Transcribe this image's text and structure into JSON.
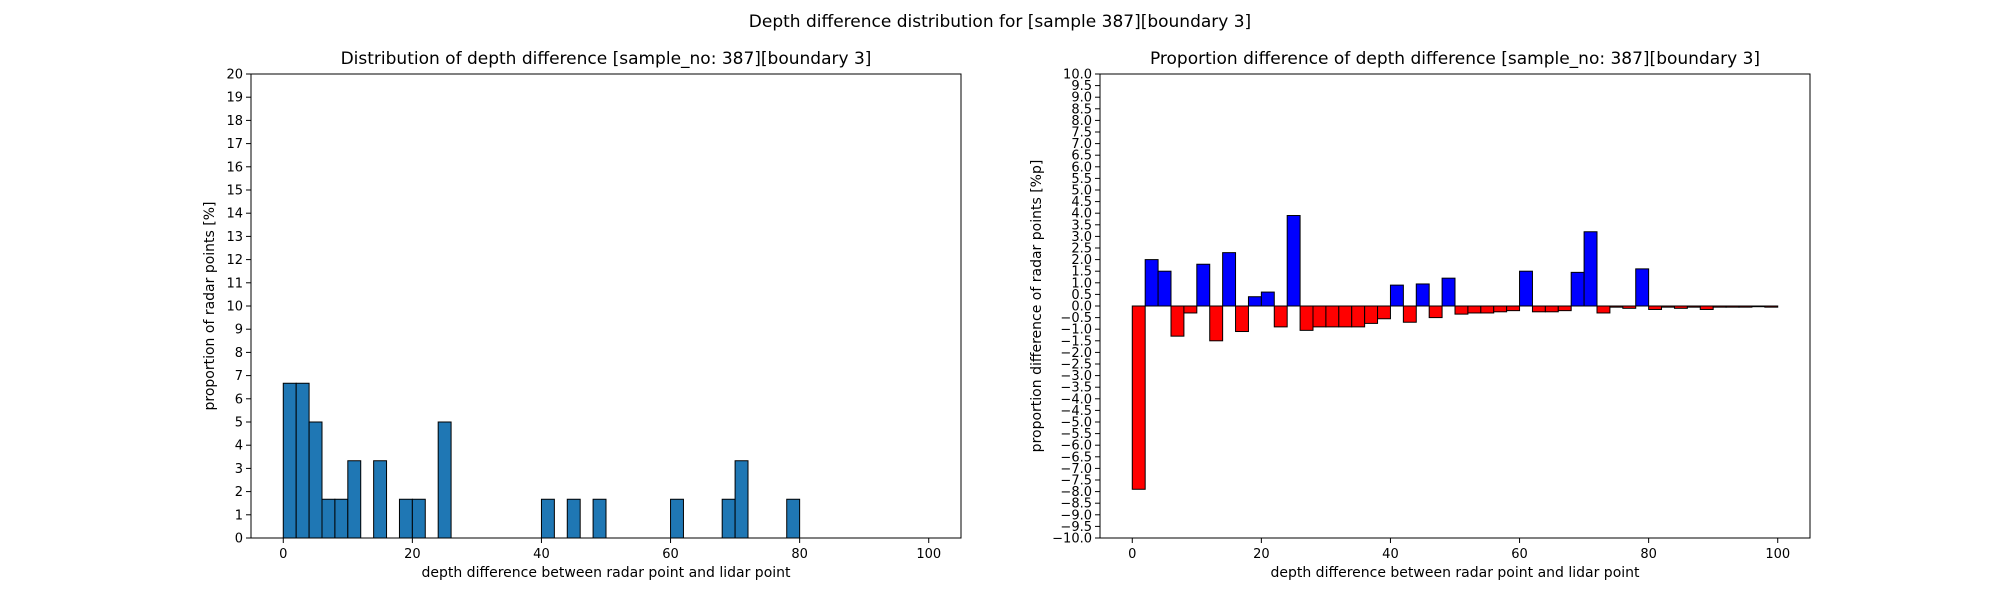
{
  "figure_title": "Depth difference distribution for [sample 387][boundary 3]",
  "chart_data": [
    {
      "type": "bar",
      "title": "Distribution of depth difference [sample_no: 387][boundary 3]",
      "xlabel": "depth difference between radar point and lidar point",
      "ylabel": "proportion of radar points [%]",
      "xlim": [
        -5,
        105
      ],
      "ylim": [
        0,
        20
      ],
      "xticks": [
        0,
        20,
        40,
        60,
        80,
        100
      ],
      "yticks": [
        0,
        1,
        2,
        3,
        4,
        5,
        6,
        7,
        8,
        9,
        10,
        11,
        12,
        13,
        14,
        15,
        16,
        17,
        18,
        19,
        20
      ],
      "bin_width": 2,
      "bins": [
        {
          "x": 0,
          "value": 6.67
        },
        {
          "x": 2,
          "value": 6.67
        },
        {
          "x": 4,
          "value": 5.0
        },
        {
          "x": 6,
          "value": 1.67
        },
        {
          "x": 8,
          "value": 1.67
        },
        {
          "x": 10,
          "value": 3.33
        },
        {
          "x": 14,
          "value": 3.33
        },
        {
          "x": 18,
          "value": 1.67
        },
        {
          "x": 20,
          "value": 1.67
        },
        {
          "x": 24,
          "value": 5.0
        },
        {
          "x": 40,
          "value": 1.67
        },
        {
          "x": 44,
          "value": 1.67
        },
        {
          "x": 48,
          "value": 1.67
        },
        {
          "x": 60,
          "value": 1.67
        },
        {
          "x": 68,
          "value": 1.67
        },
        {
          "x": 70,
          "value": 3.33
        },
        {
          "x": 78,
          "value": 1.67
        }
      ],
      "colors": {
        "bar": "#1f77b4",
        "edge": "#000000"
      }
    },
    {
      "type": "bar",
      "title": "Proportion difference of depth difference [sample_no: 387][boundary 3]",
      "xlabel": "depth difference between radar point and lidar point",
      "ylabel": "proportion difference of radar points [%p]",
      "xlim": [
        -5,
        105
      ],
      "ylim": [
        -10,
        10
      ],
      "xticks": [
        0,
        20,
        40,
        60,
        80,
        100
      ],
      "ytick_step": 0.5,
      "bin_width": 2,
      "bins": [
        {
          "x": 0,
          "value": -7.9
        },
        {
          "x": 2,
          "value": 2.0
        },
        {
          "x": 4,
          "value": 1.5
        },
        {
          "x": 6,
          "value": -1.3
        },
        {
          "x": 8,
          "value": -0.3
        },
        {
          "x": 10,
          "value": 1.8
        },
        {
          "x": 12,
          "value": -1.5
        },
        {
          "x": 14,
          "value": 2.3
        },
        {
          "x": 16,
          "value": -1.1
        },
        {
          "x": 18,
          "value": 0.4
        },
        {
          "x": 20,
          "value": 0.6
        },
        {
          "x": 22,
          "value": -0.9
        },
        {
          "x": 24,
          "value": 3.9
        },
        {
          "x": 26,
          "value": -1.05
        },
        {
          "x": 28,
          "value": -0.9
        },
        {
          "x": 30,
          "value": -0.9
        },
        {
          "x": 32,
          "value": -0.9
        },
        {
          "x": 34,
          "value": -0.9
        },
        {
          "x": 36,
          "value": -0.75
        },
        {
          "x": 38,
          "value": -0.55
        },
        {
          "x": 40,
          "value": 0.9
        },
        {
          "x": 42,
          "value": -0.7
        },
        {
          "x": 44,
          "value": 0.95
        },
        {
          "x": 46,
          "value": -0.5
        },
        {
          "x": 48,
          "value": 1.2
        },
        {
          "x": 50,
          "value": -0.35
        },
        {
          "x": 52,
          "value": -0.3
        },
        {
          "x": 54,
          "value": -0.3
        },
        {
          "x": 56,
          "value": -0.25
        },
        {
          "x": 58,
          "value": -0.2
        },
        {
          "x": 60,
          "value": 1.5
        },
        {
          "x": 62,
          "value": -0.25
        },
        {
          "x": 64,
          "value": -0.25
        },
        {
          "x": 66,
          "value": -0.2
        },
        {
          "x": 68,
          "value": 1.45
        },
        {
          "x": 70,
          "value": 3.2
        },
        {
          "x": 72,
          "value": -0.3
        },
        {
          "x": 74,
          "value": -0.05
        },
        {
          "x": 76,
          "value": -0.1
        },
        {
          "x": 78,
          "value": 1.6
        },
        {
          "x": 80,
          "value": -0.15
        },
        {
          "x": 82,
          "value": -0.05
        },
        {
          "x": 84,
          "value": -0.1
        },
        {
          "x": 86,
          "value": -0.05
        },
        {
          "x": 88,
          "value": -0.15
        },
        {
          "x": 90,
          "value": -0.05
        },
        {
          "x": 92,
          "value": -0.05
        },
        {
          "x": 94,
          "value": -0.05
        },
        {
          "x": 96,
          "value": -0.03
        },
        {
          "x": 98,
          "value": -0.05
        }
      ],
      "colors": {
        "positive": "#0000ff",
        "negative": "#ff0000",
        "edge": "#000000"
      }
    }
  ]
}
